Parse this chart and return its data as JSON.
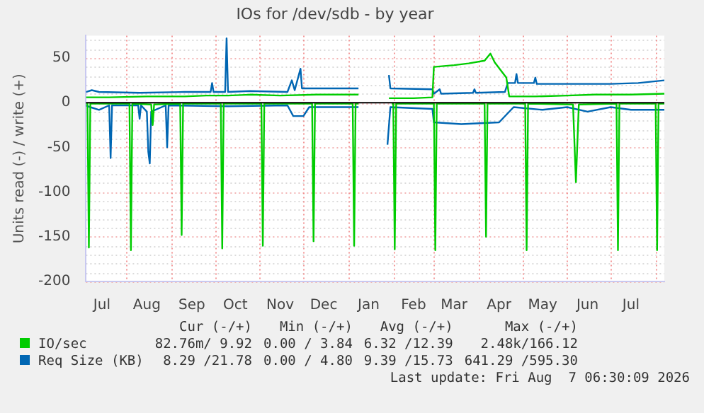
{
  "chart_data": {
    "type": "line",
    "title": "IOs for /dev/sdb - by year",
    "ylabel": "Units read (-) / write (+)",
    "xlim": [
      "2025-07-04",
      "2026-08-07"
    ],
    "ylim": [
      -200,
      75
    ],
    "xticks": [
      {
        "value": "2025-07-15",
        "label": "Jul"
      },
      {
        "value": "2025-08-01",
        "label": null
      },
      {
        "value": "2025-08-15",
        "label": "Aug"
      },
      {
        "value": "2025-09-01",
        "label": null
      },
      {
        "value": "2025-09-15",
        "label": "Sep"
      },
      {
        "value": "2025-10-01",
        "label": null
      },
      {
        "value": "2025-10-15",
        "label": "Oct"
      },
      {
        "value": "2025-11-01",
        "label": null
      },
      {
        "value": "2025-11-15",
        "label": "Nov"
      },
      {
        "value": "2025-12-01",
        "label": null
      },
      {
        "value": "2025-12-15",
        "label": "Dec"
      },
      {
        "value": "2026-01-01",
        "label": null
      },
      {
        "value": "2026-01-15",
        "label": "Jan"
      },
      {
        "value": "2026-02-01",
        "label": null
      },
      {
        "value": "2026-02-15",
        "label": "Feb"
      },
      {
        "value": "2026-03-01",
        "label": null
      },
      {
        "value": "2026-03-15",
        "label": "Mar"
      },
      {
        "value": "2026-04-01",
        "label": null
      },
      {
        "value": "2026-04-15",
        "label": "Apr"
      },
      {
        "value": "2026-05-01",
        "label": null
      },
      {
        "value": "2026-05-15",
        "label": "May"
      },
      {
        "value": "2026-06-01",
        "label": null
      },
      {
        "value": "2026-06-15",
        "label": "Jun"
      },
      {
        "value": "2026-07-01",
        "label": null
      },
      {
        "value": "2026-07-15",
        "label": "Jul"
      },
      {
        "value": "2026-08-01",
        "label": null
      }
    ],
    "yticks": [
      -200,
      {
        "value": -190,
        "label": null
      },
      {
        "value": -180,
        "label": null
      },
      {
        "value": -170,
        "label": null
      },
      {
        "value": -160,
        "label": null
      },
      -150,
      {
        "value": -140,
        "label": null
      },
      {
        "value": -130,
        "label": null
      },
      {
        "value": -120,
        "label": null
      },
      {
        "value": -110,
        "label": null
      },
      -100,
      {
        "value": -90,
        "label": null
      },
      {
        "value": -80,
        "label": null
      },
      {
        "value": -70,
        "label": null
      },
      {
        "value": -60,
        "label": null
      },
      -50,
      {
        "value": -40,
        "label": null
      },
      {
        "value": -30,
        "label": null
      },
      {
        "value": -20,
        "label": null
      },
      {
        "value": -10,
        "label": null
      },
      0,
      {
        "value": 10,
        "label": null
      },
      {
        "value": 20,
        "label": null
      },
      {
        "value": 30,
        "label": null
      },
      {
        "value": 40,
        "label": null
      },
      50,
      {
        "value": 60,
        "label": null
      },
      {
        "value": 70,
        "label": null
      }
    ],
    "grid": true,
    "legend": "bottom",
    "marker": "none",
    "line_style": "solid",
    "ref_lines": [
      {
        "axis": "y",
        "value": 0,
        "color": "#000000"
      }
    ],
    "series": [
      {
        "name": "IO/sec",
        "color": "#00cc00",
        "x": [
          "2025-07-04",
          "2025-07-20",
          "2025-08-15",
          "2025-09-10",
          "2025-09-25",
          "2025-10-10",
          "2025-10-25",
          "2025-11-15",
          "2025-12-10",
          "2026-01-08",
          "2026-01-09",
          "2026-01-29",
          "2026-02-15",
          "2026-02-28",
          "2026-03-01",
          "2026-03-15",
          "2026-03-25",
          "2026-04-05",
          "2026-04-09",
          "2026-04-12",
          "2026-04-20",
          "2026-04-22",
          "2026-05-10",
          "2026-06-01",
          "2026-06-20",
          "2026-07-15",
          "2026-08-07"
        ],
        "values": [
          6,
          6,
          7,
          7,
          8,
          8,
          9,
          8,
          9,
          9,
          null,
          5,
          5,
          6,
          40,
          42,
          44,
          47,
          55,
          45,
          28,
          7,
          7,
          8,
          9,
          9,
          10
        ]
      },
      {
        "color": "#00cc00",
        "x": [
          "2025-07-04",
          "2025-07-05",
          "2025-07-06",
          "2025-07-07",
          "2025-08-03",
          "2025-08-04",
          "2025-08-05",
          "2025-08-18",
          "2025-08-19",
          "2025-08-20",
          "2025-09-07",
          "2025-09-08",
          "2025-09-09",
          "2025-10-05",
          "2025-10-06",
          "2025-10-07",
          "2025-11-02",
          "2025-11-03",
          "2025-11-04",
          "2025-12-07",
          "2025-12-08",
          "2025-12-09",
          "2026-01-04",
          "2026-01-05",
          "2026-01-06",
          "2026-01-08",
          "2026-01-09",
          "2026-01-31",
          "2026-02-01",
          "2026-02-02",
          "2026-02-03",
          "2026-03-01",
          "2026-03-02",
          "2026-03-03",
          "2026-04-05",
          "2026-04-06",
          "2026-04-07",
          "2026-05-03",
          "2026-05-04",
          "2026-05-05",
          "2026-06-05",
          "2026-06-07",
          "2026-06-09",
          "2026-07-05",
          "2026-07-06",
          "2026-07-07",
          "2026-08-01",
          "2026-08-02",
          "2026-08-03",
          "2026-08-07"
        ],
        "values": [
          -1,
          -1,
          -162,
          -1,
          -1,
          -165,
          -1,
          -2,
          -25,
          -2,
          -1,
          -148,
          -1,
          -1,
          -163,
          -1,
          -1,
          -160,
          -1,
          -1,
          -155,
          -1,
          -1,
          -160,
          -1,
          -1,
          null,
          -1,
          -1,
          -164,
          -1,
          -1,
          -165,
          -1,
          -1,
          -150,
          -1,
          -1,
          -165,
          -1,
          -2,
          -89,
          -2,
          -1,
          -165,
          -1,
          -1,
          -165,
          -1,
          -1
        ]
      },
      {
        "name": "Req Size (KB)",
        "color": "#0066b3",
        "x": [
          "2025-07-04",
          "2025-07-08",
          "2025-07-13",
          "2025-08-10",
          "2025-09-10",
          "2025-09-28",
          "2025-09-29",
          "2025-09-30",
          "2025-10-08",
          "2025-10-09",
          "2025-10-10",
          "2025-10-25",
          "2025-11-20",
          "2025-11-23",
          "2025-11-25",
          "2025-11-29",
          "2025-11-30",
          "2025-12-20",
          "2026-01-08",
          "2026-01-09",
          "2026-01-29",
          "2026-01-30",
          "2026-02-28",
          "2026-03-01",
          "2026-03-05",
          "2026-03-06",
          "2026-03-28",
          "2026-03-29",
          "2026-03-30",
          "2026-04-19",
          "2026-04-21",
          "2026-04-26",
          "2026-04-27",
          "2026-04-28",
          "2026-05-09",
          "2026-05-10",
          "2026-05-11",
          "2026-06-10",
          "2026-07-01",
          "2026-07-20",
          "2026-08-07"
        ],
        "values": [
          12,
          14,
          12,
          11,
          12,
          12,
          22,
          12,
          12,
          72,
          12,
          13,
          12,
          25,
          14,
          38,
          16,
          16,
          16,
          null,
          31,
          16,
          15,
          10,
          15,
          10,
          11,
          15,
          11,
          12,
          22,
          22,
          32,
          22,
          22,
          28,
          21,
          21,
          21,
          22,
          25
        ]
      },
      {
        "color": "#0066b3",
        "x": [
          "2025-07-04",
          "2025-07-07",
          "2025-07-13",
          "2025-07-20",
          "2025-07-21",
          "2025-07-22",
          "2025-08-09",
          "2025-08-10",
          "2025-08-11",
          "2025-08-15",
          "2025-08-16",
          "2025-08-17",
          "2025-08-18",
          "2025-08-28",
          "2025-08-29",
          "2025-08-30",
          "2025-10-10",
          "2025-11-20",
          "2025-11-24",
          "2025-12-01",
          "2025-12-05",
          "2026-01-08",
          "2026-01-09",
          "2026-01-28",
          "2026-01-30",
          "2026-02-28",
          "2026-03-01",
          "2026-03-20",
          "2026-04-15",
          "2026-04-25",
          "2026-05-15",
          "2026-06-01",
          "2026-06-15",
          "2026-07-01",
          "2026-07-15",
          "2026-08-07"
        ],
        "values": [
          -3,
          -5,
          -8,
          -3,
          -62,
          -3,
          -3,
          -18,
          -3,
          -10,
          -55,
          -68,
          -10,
          -3,
          -50,
          -3,
          -4,
          -3,
          -15,
          -15,
          -5,
          -5,
          null,
          -47,
          -5,
          -7,
          -22,
          -24,
          -22,
          -5,
          -8,
          -5,
          -10,
          -5,
          -8,
          -8
        ]
      }
    ],
    "annotations": [
      "Cur (-/+)",
      "Min (-/+)",
      "Avg (-/+)",
      "Max (-/+)",
      "82.76m/ 9.92",
      "0.00 / 3.84",
      "6.32 /12.39",
      "2.48k/166.12",
      "8.29 /21.78",
      "0.00 / 4.80",
      "9.39 /15.73",
      "641.29 /595.30",
      "Last update: Fri Aug  7 06:30:09 2026"
    ]
  }
}
